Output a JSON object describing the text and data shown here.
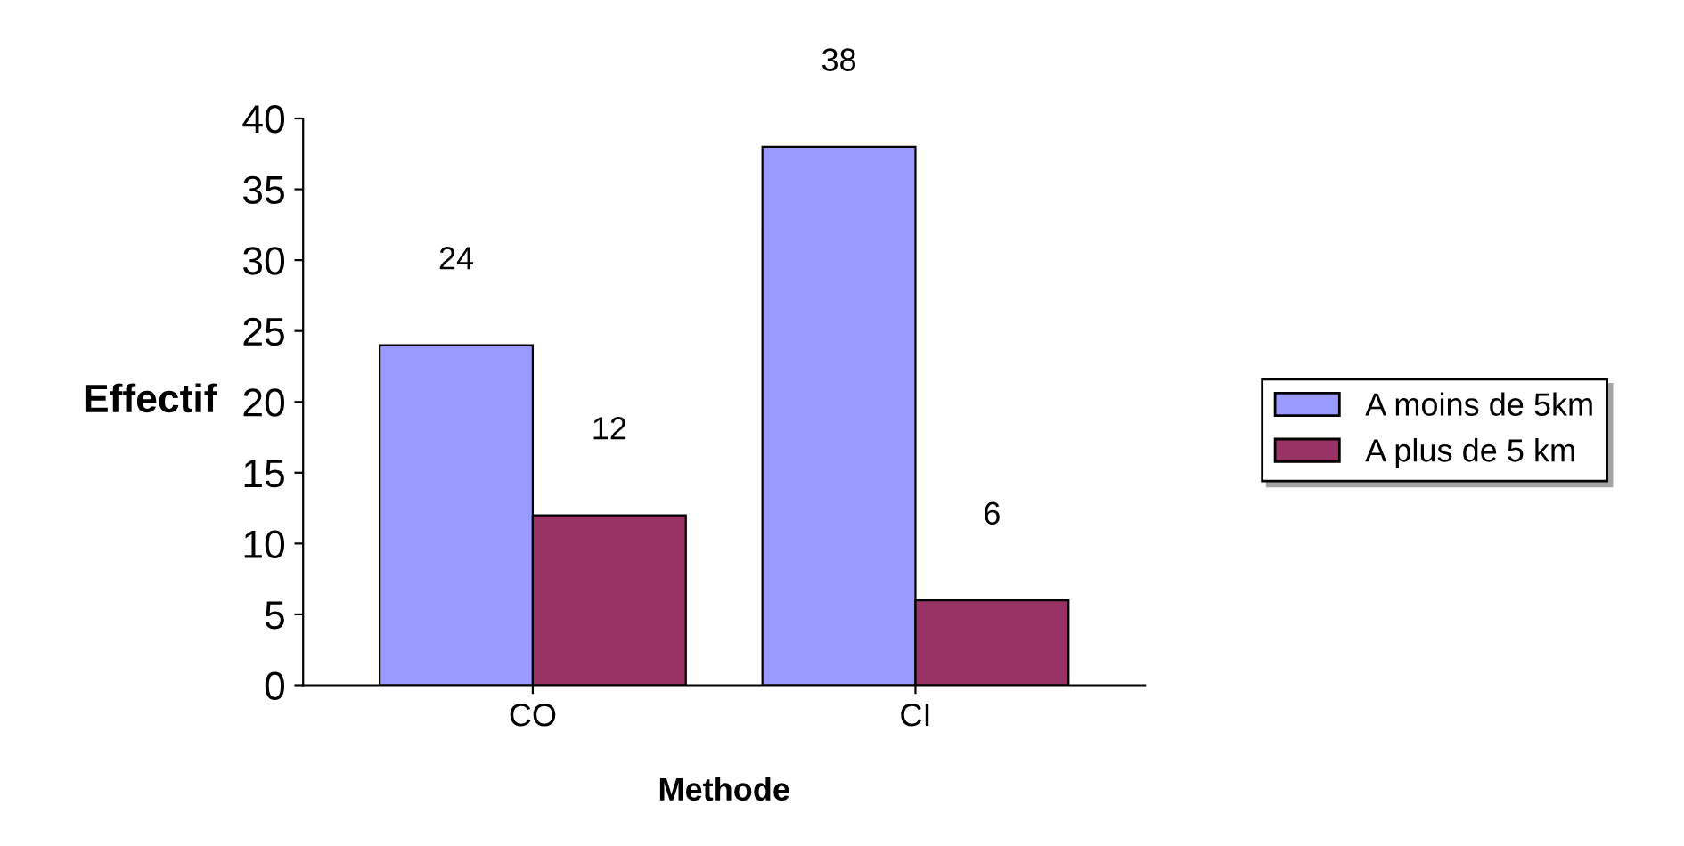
{
  "chart_data": {
    "type": "bar",
    "xlabel": "Methode",
    "ylabel": "Effectif",
    "categories": [
      "CO",
      "CI"
    ],
    "series": [
      {
        "name": "A moins de 5km",
        "color": "#9999ff",
        "values": [
          24,
          38
        ]
      },
      {
        "name": "A plus de 5 km",
        "color": "#993366",
        "values": [
          12,
          6
        ]
      }
    ],
    "ylim": [
      0,
      40
    ],
    "yticks": [
      0,
      5,
      10,
      15,
      20,
      25,
      30,
      35,
      40
    ],
    "data_labels": true,
    "grid": false,
    "legend": "right"
  }
}
